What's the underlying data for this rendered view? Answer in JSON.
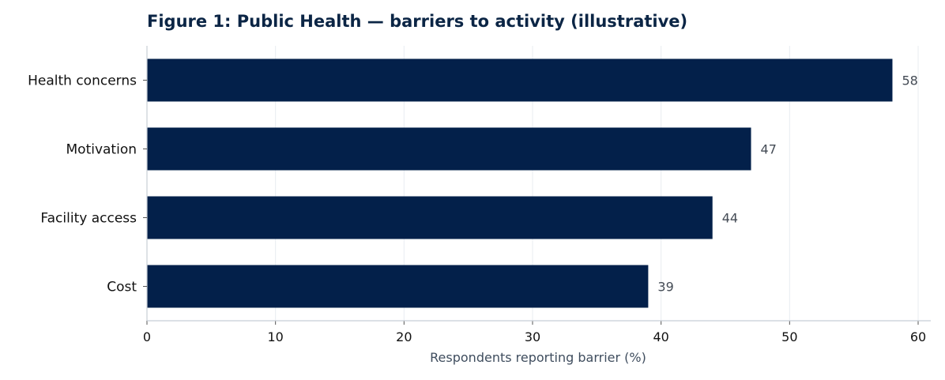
{
  "chart_data": {
    "type": "bar",
    "orientation": "horizontal",
    "title": "Figure 1: Public Health — barriers to activity (illustrative)",
    "categories": [
      "Health concerns",
      "Motivation",
      "Facility access",
      "Cost"
    ],
    "values": [
      58,
      47,
      44,
      39
    ],
    "xlabel": "Respondents reporting barrier (%)",
    "ylabel": "",
    "xlim": [
      0,
      60
    ],
    "xticks": [
      0,
      10,
      20,
      30,
      40,
      50,
      60
    ],
    "grid": "vertical",
    "data_labels": true,
    "bar_color": "#03204a",
    "grid_color": "#e8ecf1",
    "axis_color": "#c8ced6"
  }
}
